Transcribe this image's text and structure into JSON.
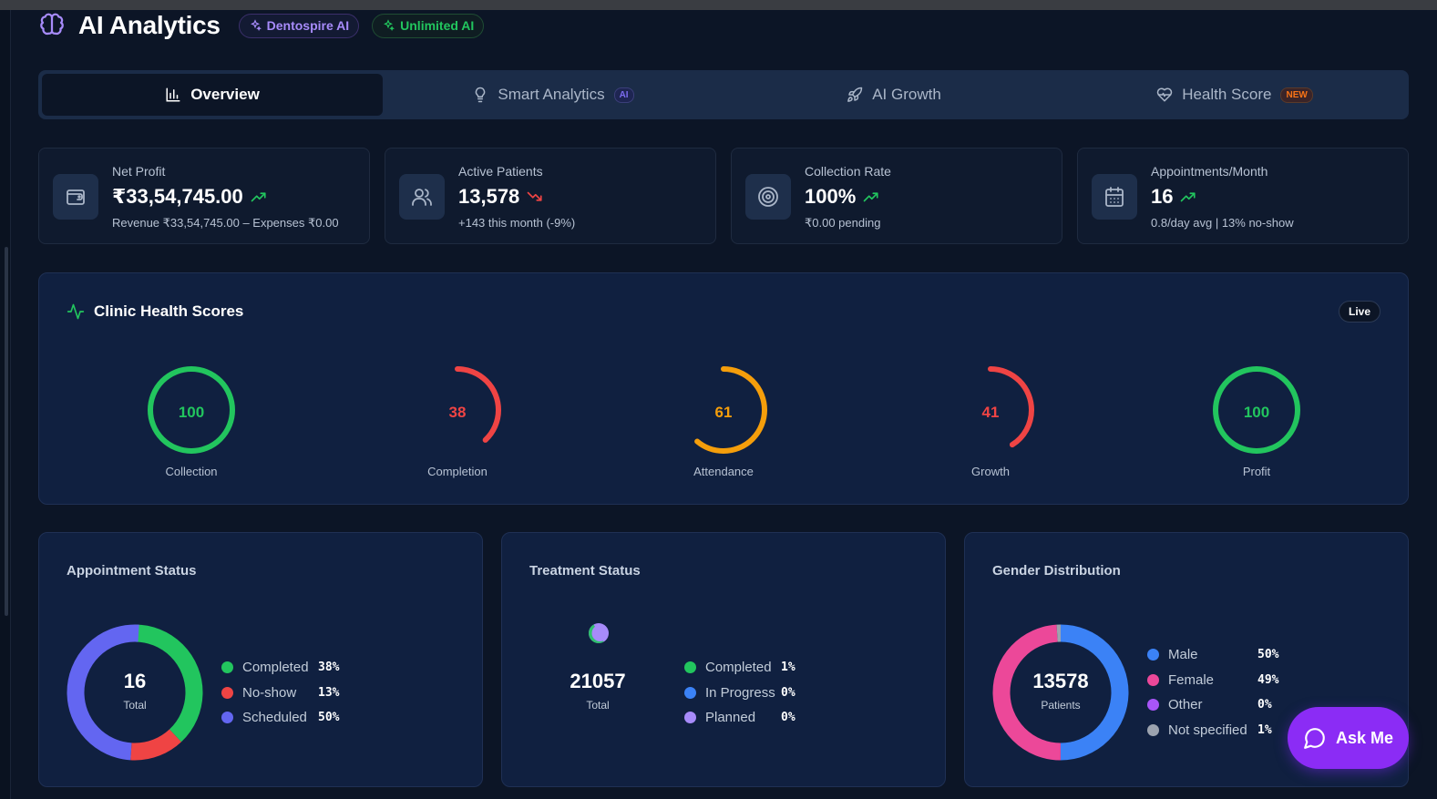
{
  "header": {
    "title": "AI Analytics",
    "badge_dentospire": "Dentospire AI",
    "badge_unlimited": "Unlimited AI"
  },
  "tabs": [
    {
      "label": "Overview",
      "icon": "bar-chart-icon",
      "active": true
    },
    {
      "label": "Smart Analytics",
      "icon": "lightbulb-icon",
      "badge": "AI"
    },
    {
      "label": "AI Growth",
      "icon": "rocket-icon"
    },
    {
      "label": "Health Score",
      "icon": "heart-pulse-icon",
      "badge": "NEW"
    }
  ],
  "kpis": [
    {
      "label": "Net Profit",
      "value": "₹33,54,745.00",
      "trend": "up",
      "sub": "Revenue ₹33,54,745.00 – Expenses ₹0.00",
      "icon": "wallet-icon"
    },
    {
      "label": "Active Patients",
      "value": "13,578",
      "trend": "down",
      "sub": "+143 this month (-9%)",
      "icon": "users-icon"
    },
    {
      "label": "Collection Rate",
      "value": "100%",
      "trend": "up",
      "sub": "₹0.00 pending",
      "icon": "target-icon"
    },
    {
      "label": "Appointments/Month",
      "value": "16",
      "trend": "up",
      "sub": "0.8/day avg | 13% no-show",
      "icon": "calendar-icon"
    }
  ],
  "health": {
    "title": "Clinic Health Scores",
    "live": "Live",
    "scores": [
      {
        "label": "Collection",
        "value": "100",
        "percent": 100,
        "color": "#22c55e"
      },
      {
        "label": "Completion",
        "value": "38",
        "percent": 38,
        "color": "#ef4444"
      },
      {
        "label": "Attendance",
        "value": "61",
        "percent": 61,
        "color": "#f59e0b"
      },
      {
        "label": "Growth",
        "value": "41",
        "percent": 41,
        "color": "#ef4444"
      },
      {
        "label": "Profit",
        "value": "100",
        "percent": 100,
        "color": "#22c55e"
      }
    ]
  },
  "appointment_status": {
    "title": "Appointment Status",
    "total": "16",
    "caption": "Total",
    "items": [
      {
        "label": "Completed",
        "value": "38%",
        "color": "#22c55e"
      },
      {
        "label": "No-show",
        "value": "13%",
        "color": "#ef4444"
      },
      {
        "label": "Scheduled",
        "value": "50%",
        "color": "#6366f1"
      }
    ]
  },
  "treatment_status": {
    "title": "Treatment Status",
    "total": "21057",
    "caption": "Total",
    "items": [
      {
        "label": "Completed",
        "value": "1%",
        "color": "#22c55e"
      },
      {
        "label": "In Progress",
        "value": "0%",
        "color": "#3b82f6"
      },
      {
        "label": "Planned",
        "value": "0%",
        "color": "#a78bfa"
      }
    ]
  },
  "gender_distribution": {
    "title": "Gender Distribution",
    "total": "13578",
    "caption": "Patients",
    "items": [
      {
        "label": "Male",
        "value": "50%",
        "color": "#3b82f6"
      },
      {
        "label": "Female",
        "value": "49%",
        "color": "#ec4899"
      },
      {
        "label": "Other",
        "value": "0%",
        "color": "#a855f7"
      },
      {
        "label": "Not specified",
        "value": "1%",
        "color": "#9ca3af"
      }
    ]
  },
  "ask_me": {
    "label": "Ask Me",
    "icon": "chat-bubble-icon"
  },
  "colors": {
    "accent_purple": "#8b2cf5",
    "success": "#22c55e",
    "danger": "#ef4444",
    "warning": "#f59e0b"
  }
}
